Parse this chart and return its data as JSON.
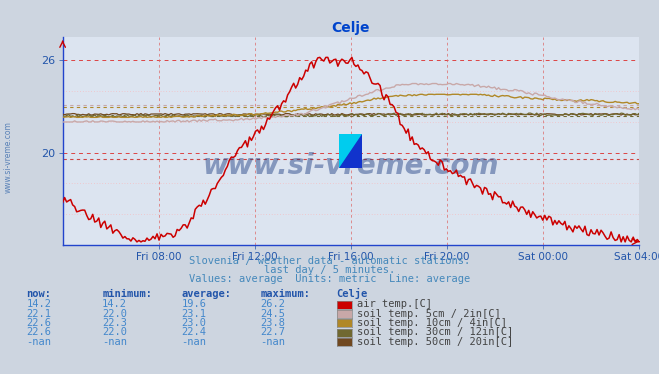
{
  "title": "Celje",
  "background_color": "#cdd5e0",
  "plot_bg_color": "#dce4f0",
  "x_labels": [
    "Fri 08:00",
    "Fri 12:00",
    "Fri 16:00",
    "Fri 20:00",
    "Sat 00:00",
    "Sat 04:00"
  ],
  "subtitle_lines": [
    "Slovenia / weather data - automatic stations.",
    "last day / 5 minutes.",
    "Values: average  Units: metric  Line: average"
  ],
  "legend_entries": [
    {
      "label": "air temp.[C]",
      "color": "#cc0000",
      "now": "14.2",
      "min": "14.2",
      "avg": "19.6",
      "max": "26.2"
    },
    {
      "label": "soil temp. 5cm / 2in[C]",
      "color": "#c8a8a8",
      "now": "22.1",
      "min": "22.0",
      "avg": "23.1",
      "max": "24.5"
    },
    {
      "label": "soil temp. 10cm / 4in[C]",
      "color": "#b08828",
      "now": "22.6",
      "min": "22.3",
      "avg": "23.0",
      "max": "23.8"
    },
    {
      "label": "soil temp. 30cm / 12in[C]",
      "color": "#706830",
      "now": "22.6",
      "min": "22.0",
      "avg": "22.4",
      "max": "22.7"
    },
    {
      "label": "soil temp. 50cm / 20in[C]",
      "color": "#704820",
      "now": "-nan",
      "min": "-nan",
      "avg": "-nan",
      "max": "-nan"
    }
  ],
  "watermark_text": "www.si-vreme.com",
  "air_temp_avg": 19.6,
  "soil5_avg": 23.1,
  "soil10_avg": 23.0,
  "soil30_avg": 22.4,
  "ylim_min": 14.0,
  "ylim_max": 27.5,
  "ytick_vals": [
    20,
    26
  ],
  "text_color": "#4488cc",
  "header_color": "#2266aa"
}
